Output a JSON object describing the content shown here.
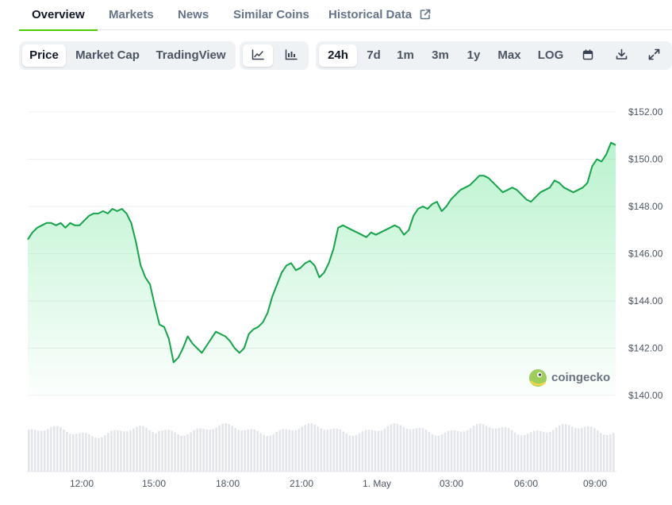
{
  "tabs": [
    {
      "label": "Overview",
      "active": true
    },
    {
      "label": "Markets",
      "active": false
    },
    {
      "label": "News",
      "active": false
    },
    {
      "label": "Similar Coins",
      "active": false
    },
    {
      "label": "Historical Data",
      "active": false,
      "icon": "external-link-icon"
    }
  ],
  "view_toggle": [
    {
      "label": "Price",
      "active": true
    },
    {
      "label": "Market Cap",
      "active": false
    },
    {
      "label": "TradingView",
      "active": false
    }
  ],
  "chart_type_toggle": [
    {
      "icon": "line-chart-icon",
      "active": true
    },
    {
      "icon": "candlestick-chart-icon",
      "active": false
    }
  ],
  "range_toggle": [
    {
      "label": "24h",
      "active": true
    },
    {
      "label": "7d",
      "active": false
    },
    {
      "label": "1m",
      "active": false
    },
    {
      "label": "3m",
      "active": false
    },
    {
      "label": "1y",
      "active": false
    },
    {
      "label": "Max",
      "active": false
    },
    {
      "label": "LOG",
      "active": false
    }
  ],
  "tool_icons": [
    "calendar-icon",
    "download-icon",
    "fullscreen-icon"
  ],
  "watermark": "coingecko",
  "colors": {
    "line": "#16a34a",
    "accent": "#4bcc00"
  },
  "chart_data": {
    "type": "area",
    "x_ticks": [
      "12:00",
      "15:00",
      "18:00",
      "21:00",
      "1. May",
      "03:00",
      "06:00",
      "09:00"
    ],
    "y_ticks": [
      "$152.00",
      "$150.00",
      "$148.00",
      "$146.00",
      "$144.00",
      "$142.00",
      "$140.00"
    ],
    "ylim": [
      140,
      152
    ],
    "y_axis": "right",
    "grid": true,
    "price_series": [
      146.6,
      146.9,
      147.1,
      147.2,
      147.3,
      147.3,
      147.2,
      147.3,
      147.1,
      147.3,
      147.2,
      147.2,
      147.4,
      147.6,
      147.7,
      147.7,
      147.8,
      147.7,
      147.9,
      147.8,
      147.9,
      147.7,
      147.3,
      146.5,
      145.5,
      145.0,
      144.7,
      143.8,
      143.0,
      142.9,
      142.4,
      141.4,
      141.6,
      142.0,
      142.5,
      142.2,
      142.0,
      141.8,
      142.1,
      142.4,
      142.7,
      142.6,
      142.5,
      142.3,
      142.0,
      141.8,
      142.0,
      142.6,
      142.8,
      142.9,
      143.1,
      143.5,
      144.2,
      144.7,
      145.2,
      145.5,
      145.6,
      145.3,
      145.4,
      145.6,
      145.7,
      145.5,
      145.0,
      145.2,
      145.6,
      146.2,
      147.1,
      147.2,
      147.1,
      147.0,
      146.9,
      146.8,
      146.7,
      146.9,
      146.8,
      146.9,
      147.0,
      147.1,
      147.2,
      147.1,
      146.8,
      147.0,
      147.6,
      147.9,
      148.0,
      147.9,
      148.1,
      148.2,
      147.8,
      148.0,
      148.3,
      148.5,
      148.7,
      148.8,
      148.9,
      149.1,
      149.3,
      149.3,
      149.2,
      149.0,
      148.8,
      148.6,
      148.7,
      148.8,
      148.7,
      148.5,
      148.3,
      148.2,
      148.4,
      148.6,
      148.7,
      148.8,
      149.1,
      149.0,
      148.8,
      148.7,
      148.6,
      148.7,
      148.8,
      149.0,
      149.7,
      150.0,
      149.9,
      150.2,
      150.7,
      150.6
    ],
    "volume_series": "unlabeled volume bars, roughly uniform"
  }
}
